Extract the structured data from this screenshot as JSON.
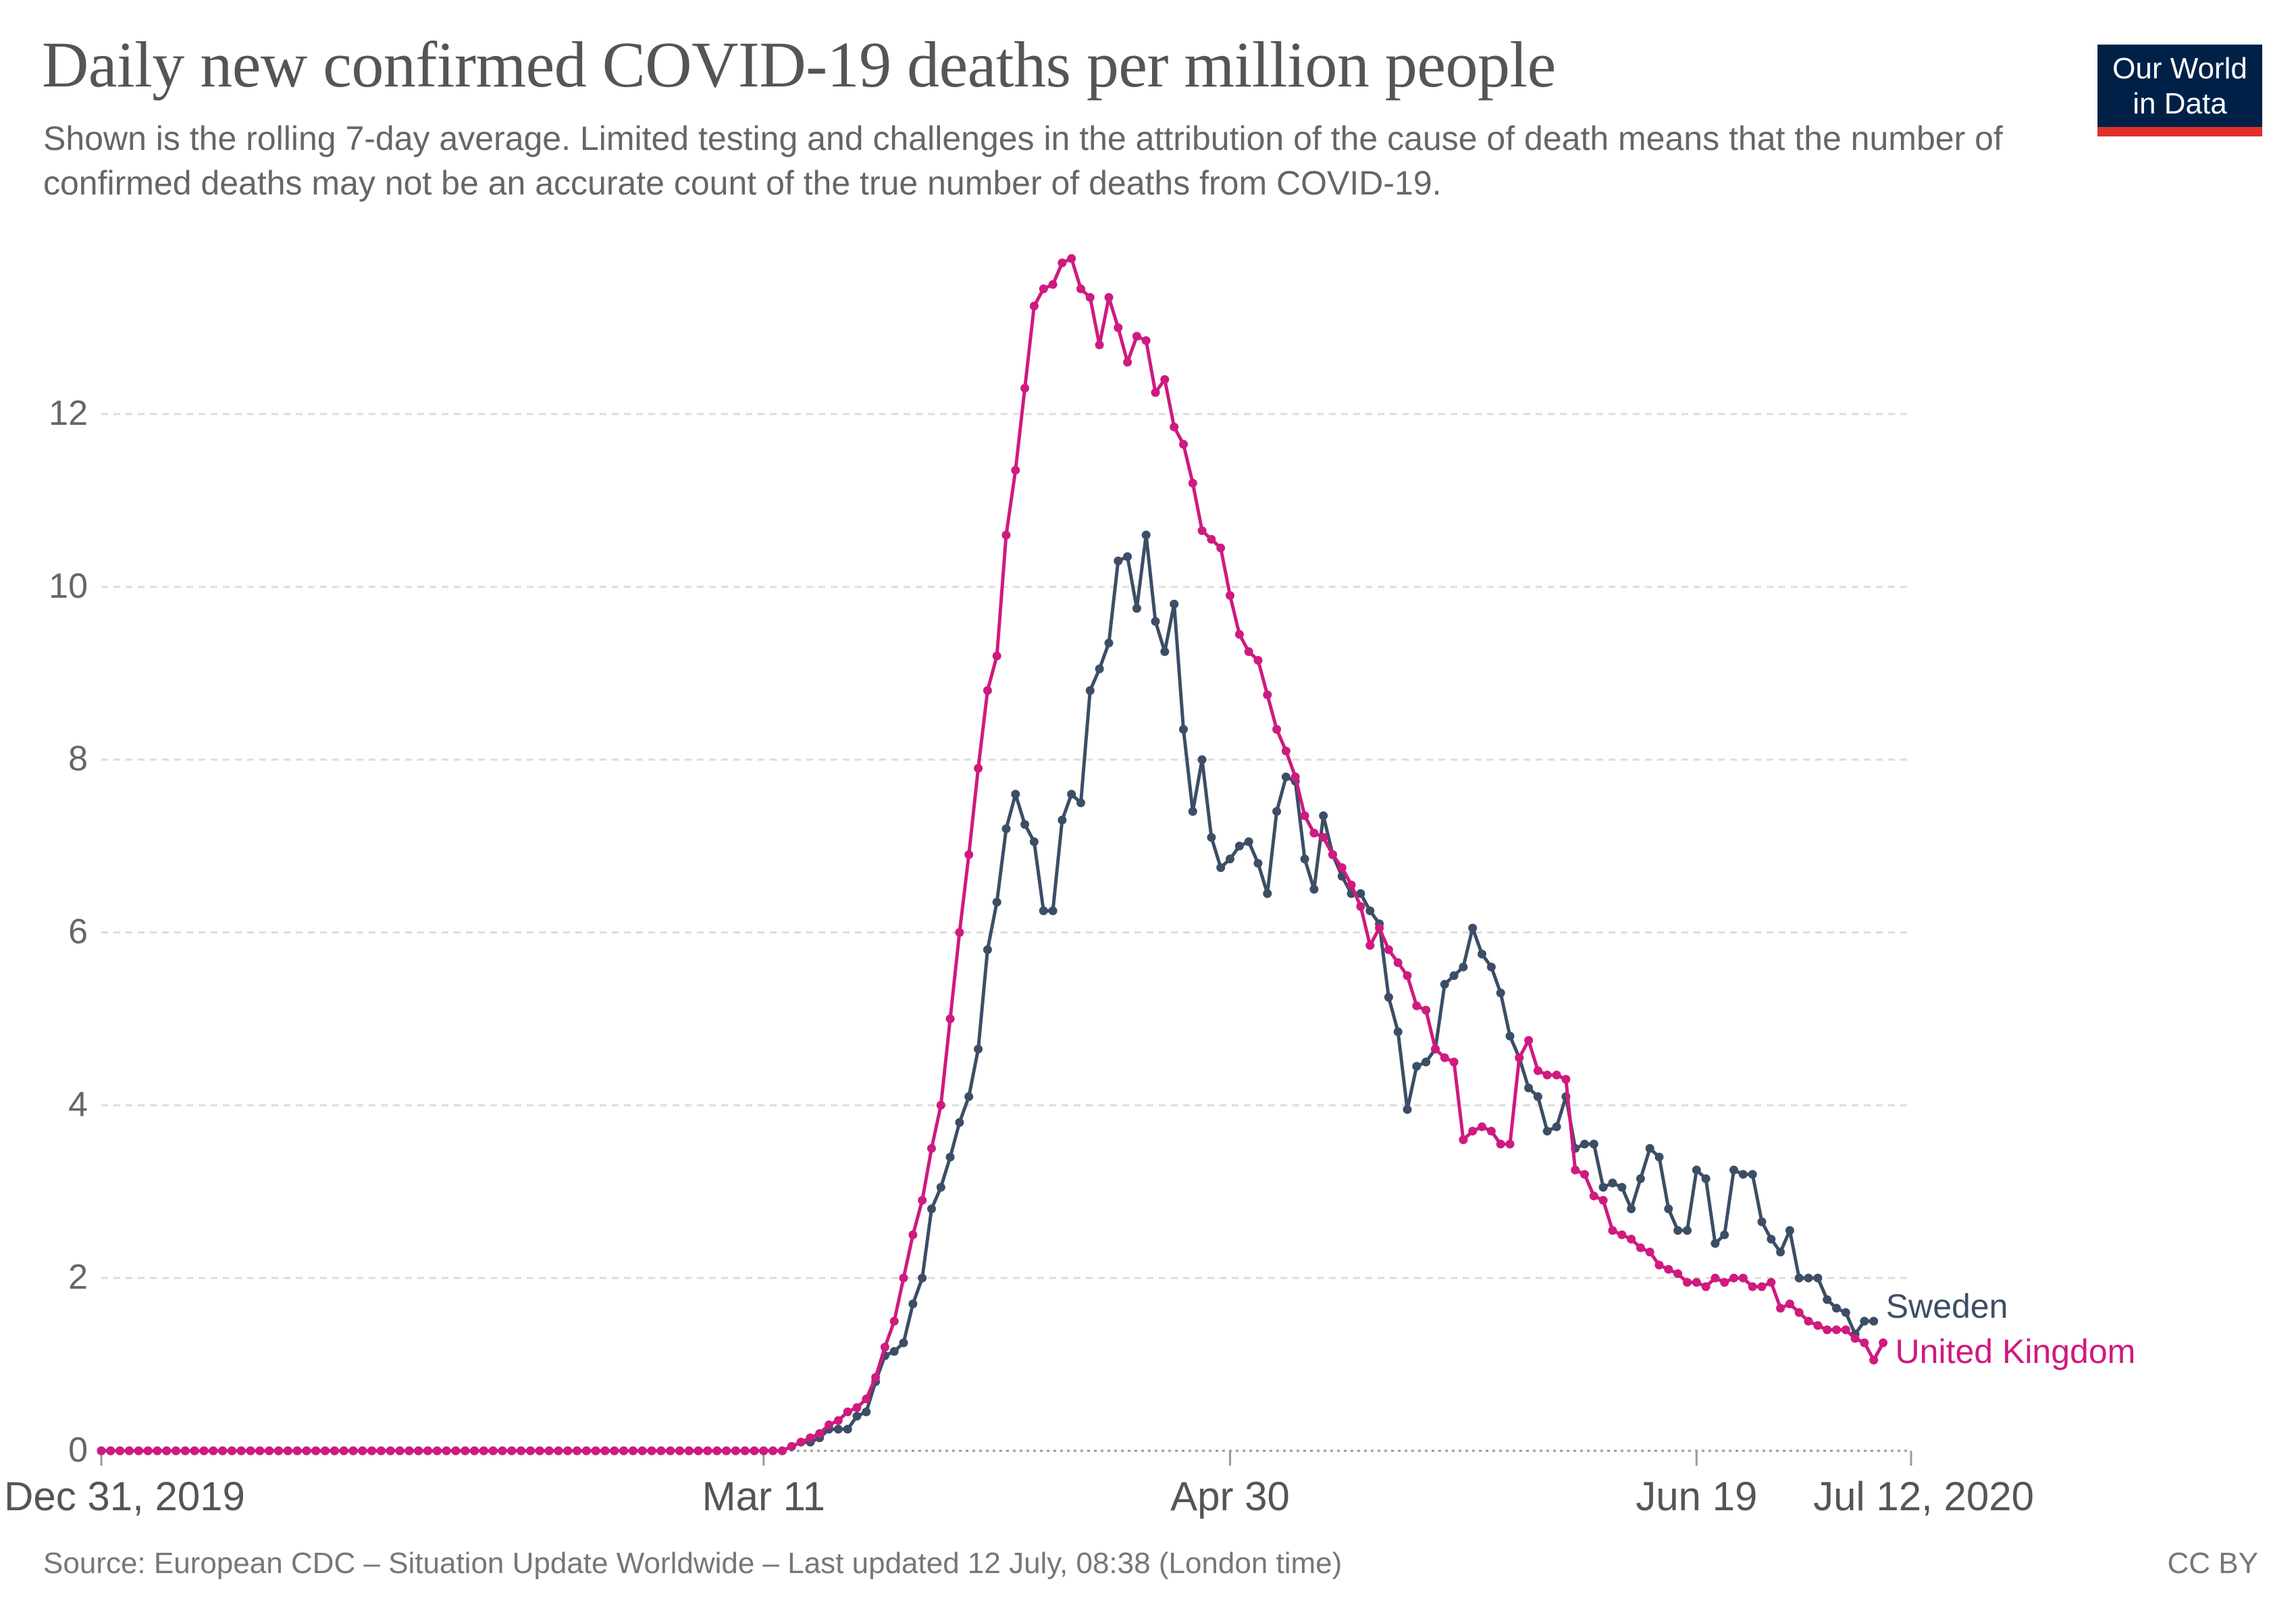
{
  "header": {
    "title": "Daily new confirmed COVID-19 deaths per million people",
    "subtitle": "Shown is the rolling 7-day average. Limited testing and challenges in the attribution of the cause of death means that the number of confirmed deaths may not be an accurate count of the true number of deaths from COVID-19."
  },
  "logo": {
    "line1": "Our World",
    "line2": "in Data"
  },
  "footer": {
    "source": "Source: European CDC – Situation Update Worldwide – Last updated 12 July, 08:38 (London time)",
    "license": "CC BY"
  },
  "colors": {
    "sweden": "#3c4e66",
    "uk": "#cf1a7f",
    "grid": "#dddddd",
    "axis": "#999999"
  },
  "chart_data": {
    "type": "line",
    "title": "Daily new confirmed COVID-19 deaths per million people",
    "xlabel": "",
    "ylabel": "",
    "x_range": [
      0,
      194
    ],
    "ylim": [
      0,
      13.9
    ],
    "y_ticks": [
      0,
      2,
      4,
      6,
      8,
      10,
      12
    ],
    "x_ticks": [
      {
        "day": 0,
        "label": "Dec 31, 2019"
      },
      {
        "day": 71,
        "label": "Mar 11"
      },
      {
        "day": 121,
        "label": "Apr 30"
      },
      {
        "day": 171,
        "label": "Jun 19"
      },
      {
        "day": 194,
        "label": "Jul 12, 2020"
      }
    ],
    "grid": true,
    "x_start_day": 0,
    "series": [
      {
        "name": "Sweden",
        "color": "#3c4e66",
        "start_day": 0,
        "values": [
          0,
          0,
          0,
          0,
          0,
          0,
          0,
          0,
          0,
          0,
          0,
          0,
          0,
          0,
          0,
          0,
          0,
          0,
          0,
          0,
          0,
          0,
          0,
          0,
          0,
          0,
          0,
          0,
          0,
          0,
          0,
          0,
          0,
          0,
          0,
          0,
          0,
          0,
          0,
          0,
          0,
          0,
          0,
          0,
          0,
          0,
          0,
          0,
          0,
          0,
          0,
          0,
          0,
          0,
          0,
          0,
          0,
          0,
          0,
          0,
          0,
          0,
          0,
          0,
          0,
          0,
          0,
          0,
          0,
          0,
          0,
          0,
          0,
          0,
          0.05,
          0.1,
          0.1,
          0.15,
          0.25,
          0.25,
          0.25,
          0.4,
          0.45,
          0.8,
          1.1,
          1.15,
          1.25,
          1.7,
          2.0,
          2.8,
          3.05,
          3.4,
          3.8,
          4.1,
          4.65,
          5.8,
          6.35,
          7.2,
          7.6,
          7.25,
          7.05,
          6.25,
          6.25,
          7.3,
          7.6,
          7.5,
          8.8,
          9.05,
          9.35,
          10.3,
          10.35,
          9.75,
          10.6,
          9.6,
          9.25,
          9.8,
          8.35,
          7.4,
          8.0,
          7.1,
          6.75,
          6.85,
          7.0,
          7.05,
          6.8,
          6.45,
          7.4,
          7.8,
          7.75,
          6.85,
          6.5,
          7.35,
          6.9,
          6.65,
          6.45,
          6.45,
          6.25,
          6.1,
          5.25,
          4.85,
          3.95,
          4.45,
          4.5,
          4.65,
          5.4,
          5.5,
          5.6,
          6.05,
          5.75,
          5.6,
          5.3,
          4.8,
          4.55,
          4.2,
          4.1,
          3.7,
          3.75,
          4.1,
          3.5,
          3.55,
          3.55,
          3.05,
          3.1,
          3.05,
          2.8,
          3.15,
          3.5,
          3.4,
          2.8,
          2.55,
          2.55,
          3.25,
          3.15,
          2.4,
          2.5,
          3.25,
          3.2,
          3.2,
          2.65,
          2.45,
          2.3,
          2.55,
          2.0,
          2.0,
          2.0,
          1.75,
          1.65,
          1.6,
          1.35,
          1.5,
          1.5
        ]
      },
      {
        "name": "United Kingdom",
        "color": "#cf1a7f",
        "start_day": 0,
        "values": [
          0,
          0,
          0,
          0,
          0,
          0,
          0,
          0,
          0,
          0,
          0,
          0,
          0,
          0,
          0,
          0,
          0,
          0,
          0,
          0,
          0,
          0,
          0,
          0,
          0,
          0,
          0,
          0,
          0,
          0,
          0,
          0,
          0,
          0,
          0,
          0,
          0,
          0,
          0,
          0,
          0,
          0,
          0,
          0,
          0,
          0,
          0,
          0,
          0,
          0,
          0,
          0,
          0,
          0,
          0,
          0,
          0,
          0,
          0,
          0,
          0,
          0,
          0,
          0,
          0,
          0,
          0,
          0,
          0,
          0,
          0,
          0,
          0,
          0,
          0.05,
          0.1,
          0.15,
          0.2,
          0.3,
          0.35,
          0.45,
          0.5,
          0.6,
          0.85,
          1.2,
          1.5,
          2.0,
          2.5,
          2.9,
          3.5,
          4.0,
          5.0,
          6.0,
          6.9,
          7.9,
          8.8,
          9.2,
          10.6,
          11.35,
          12.3,
          13.25,
          13.45,
          13.5,
          13.75,
          13.8,
          13.45,
          13.35,
          12.8,
          13.35,
          13.0,
          12.6,
          12.9,
          12.85,
          12.25,
          12.4,
          11.85,
          11.65,
          11.2,
          10.65,
          10.55,
          10.45,
          9.9,
          9.45,
          9.25,
          9.15,
          8.75,
          8.35,
          8.1,
          7.8,
          7.35,
          7.15,
          7.1,
          6.9,
          6.75,
          6.55,
          6.3,
          5.85,
          6.05,
          5.8,
          5.65,
          5.5,
          5.15,
          5.1,
          4.65,
          4.55,
          4.5,
          3.6,
          3.7,
          3.75,
          3.7,
          3.55,
          3.55,
          4.55,
          4.75,
          4.4,
          4.35,
          4.35,
          4.3,
          3.25,
          3.2,
          2.95,
          2.9,
          2.55,
          2.5,
          2.45,
          2.35,
          2.3,
          2.15,
          2.1,
          2.05,
          1.95,
          1.95,
          1.9,
          2.0,
          1.95,
          2.0,
          2.0,
          1.9,
          1.9,
          1.95,
          1.65,
          1.7,
          1.6,
          1.5,
          1.45,
          1.4,
          1.4,
          1.4,
          1.3,
          1.25,
          1.05,
          1.25
        ]
      }
    ]
  }
}
